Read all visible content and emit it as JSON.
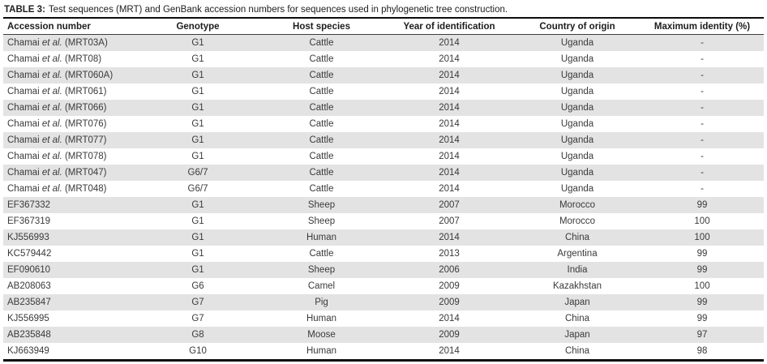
{
  "title": {
    "label": "TABLE 3:",
    "text": "Test sequences (MRT) and GenBank accession numbers for sequences used in phylogenetic tree construction."
  },
  "colors": {
    "stripe": "#e3e3e3",
    "body_text": "#3a3a3a",
    "heading_text": "#1d1d1d",
    "rule": "#0d0d0d"
  },
  "table": {
    "columns": [
      "Accession number",
      "Genotype",
      "Host species",
      "Year of identification",
      "Country of origin",
      "Maximum identity (%)"
    ],
    "rows": [
      {
        "accession": [
          "Chamai ",
          "et al.",
          " (MRT03A)"
        ],
        "genotype": "G1",
        "host": "Cattle",
        "year": "2014",
        "country": "Uganda",
        "identity": "-"
      },
      {
        "accession": [
          "Chamai ",
          "et al.",
          " (MRT08)"
        ],
        "genotype": "G1",
        "host": "Cattle",
        "year": "2014",
        "country": "Uganda",
        "identity": "-"
      },
      {
        "accession": [
          "Chamai ",
          "et al.",
          " (MRT060A)"
        ],
        "genotype": "G1",
        "host": "Cattle",
        "year": "2014",
        "country": "Uganda",
        "identity": "-"
      },
      {
        "accession": [
          "Chamai ",
          "et al.",
          " (MRT061)"
        ],
        "genotype": "G1",
        "host": "Cattle",
        "year": "2014",
        "country": "Uganda",
        "identity": "-"
      },
      {
        "accession": [
          "Chamai ",
          "et al.",
          " (MRT066)"
        ],
        "genotype": "G1",
        "host": "Cattle",
        "year": "2014",
        "country": "Uganda",
        "identity": "-"
      },
      {
        "accession": [
          "Chamai ",
          "et al.",
          " (MRT076)"
        ],
        "genotype": "G1",
        "host": "Cattle",
        "year": "2014",
        "country": "Uganda",
        "identity": "-"
      },
      {
        "accession": [
          "Chamai ",
          "et al.",
          " (MRT077)"
        ],
        "genotype": "G1",
        "host": "Cattle",
        "year": "2014",
        "country": "Uganda",
        "identity": "-"
      },
      {
        "accession": [
          "Chamai ",
          "et al.",
          " (MRT078)"
        ],
        "genotype": "G1",
        "host": "Cattle",
        "year": "2014",
        "country": "Uganda",
        "identity": "-"
      },
      {
        "accession": [
          "Chamai ",
          "et al.",
          " (MRT047)"
        ],
        "genotype": "G6/7",
        "host": "Cattle",
        "year": "2014",
        "country": "Uganda",
        "identity": "-"
      },
      {
        "accession": [
          "Chamai ",
          "et al.",
          " (MRT048)"
        ],
        "genotype": "G6/7",
        "host": "Cattle",
        "year": "2014",
        "country": "Uganda",
        "identity": "-"
      },
      {
        "accession": [
          "EF367332",
          "",
          ""
        ],
        "genotype": "G1",
        "host": "Sheep",
        "year": "2007",
        "country": "Morocco",
        "identity": "99"
      },
      {
        "accession": [
          "EF367319",
          "",
          ""
        ],
        "genotype": "G1",
        "host": "Sheep",
        "year": "2007",
        "country": "Morocco",
        "identity": "100"
      },
      {
        "accession": [
          "KJ556993",
          "",
          ""
        ],
        "genotype": "G1",
        "host": "Human",
        "year": "2014",
        "country": "China",
        "identity": "100"
      },
      {
        "accession": [
          "KC579442",
          "",
          ""
        ],
        "genotype": "G1",
        "host": "Cattle",
        "year": "2013",
        "country": "Argentina",
        "identity": "99"
      },
      {
        "accession": [
          "EF090610",
          "",
          ""
        ],
        "genotype": "G1",
        "host": "Sheep",
        "year": "2006",
        "country": "India",
        "identity": "99"
      },
      {
        "accession": [
          "AB208063",
          "",
          ""
        ],
        "genotype": "G6",
        "host": "Camel",
        "year": "2009",
        "country": "Kazakhstan",
        "identity": "100"
      },
      {
        "accession": [
          "AB235847",
          "",
          ""
        ],
        "genotype": "G7",
        "host": "Pig",
        "year": "2009",
        "country": "Japan",
        "identity": "99"
      },
      {
        "accession": [
          "KJ556995",
          "",
          ""
        ],
        "genotype": "G7",
        "host": "Human",
        "year": "2014",
        "country": "China",
        "identity": "99"
      },
      {
        "accession": [
          "AB235848",
          "",
          ""
        ],
        "genotype": "G8",
        "host": "Moose",
        "year": "2009",
        "country": "Japan",
        "identity": "97"
      },
      {
        "accession": [
          "KJ663949",
          "",
          ""
        ],
        "genotype": "G10",
        "host": "Human",
        "year": "2014",
        "country": "China",
        "identity": "98"
      }
    ]
  }
}
